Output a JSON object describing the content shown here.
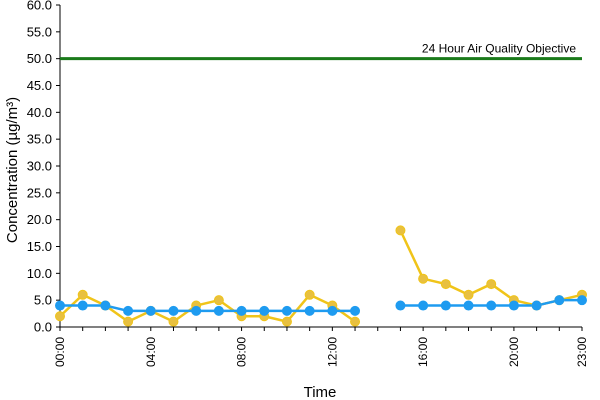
{
  "chart_data": {
    "type": "line",
    "title": "",
    "xlabel": "Time",
    "ylabel": "Concentration (µg/m³)",
    "ylim": [
      0,
      60
    ],
    "yticks": [
      "0.0",
      "5.0",
      "10.0",
      "15.0",
      "20.0",
      "25.0",
      "30.0",
      "35.0",
      "40.0",
      "45.0",
      "50.0",
      "55.0",
      "60.0"
    ],
    "xlim": [
      0,
      23
    ],
    "xtick_hours": [
      0,
      4,
      8,
      12,
      16,
      20,
      23
    ],
    "xtick_labels": [
      "00:00",
      "04:00",
      "08:00",
      "12:00",
      "16:00",
      "20:00",
      "23:00"
    ],
    "grid": false,
    "legend": "none",
    "x": [
      0,
      1,
      2,
      3,
      4,
      5,
      6,
      7,
      8,
      9,
      10,
      11,
      12,
      13,
      14,
      15,
      16,
      17,
      18,
      19,
      20,
      21,
      22,
      23
    ],
    "series": [
      {
        "color": "#f0c419",
        "marker_color": "#e8c040",
        "values": [
          2,
          6,
          4,
          1,
          3,
          1,
          4,
          5,
          2,
          2,
          1,
          6,
          4,
          1,
          null,
          18,
          9,
          8,
          6,
          8,
          5,
          4,
          5,
          6
        ]
      },
      {
        "color": "#1e9bf0",
        "marker_color": "#1e9bf0",
        "values": [
          4,
          4,
          4,
          3,
          3,
          3,
          3,
          3,
          3,
          3,
          3,
          3,
          3,
          3,
          null,
          4,
          4,
          4,
          4,
          4,
          4,
          4,
          5,
          5
        ]
      }
    ],
    "reference_lines": [
      {
        "value": 50,
        "label": "24 Hour Air Quality Objective",
        "color": "#1a7a1a"
      }
    ]
  }
}
